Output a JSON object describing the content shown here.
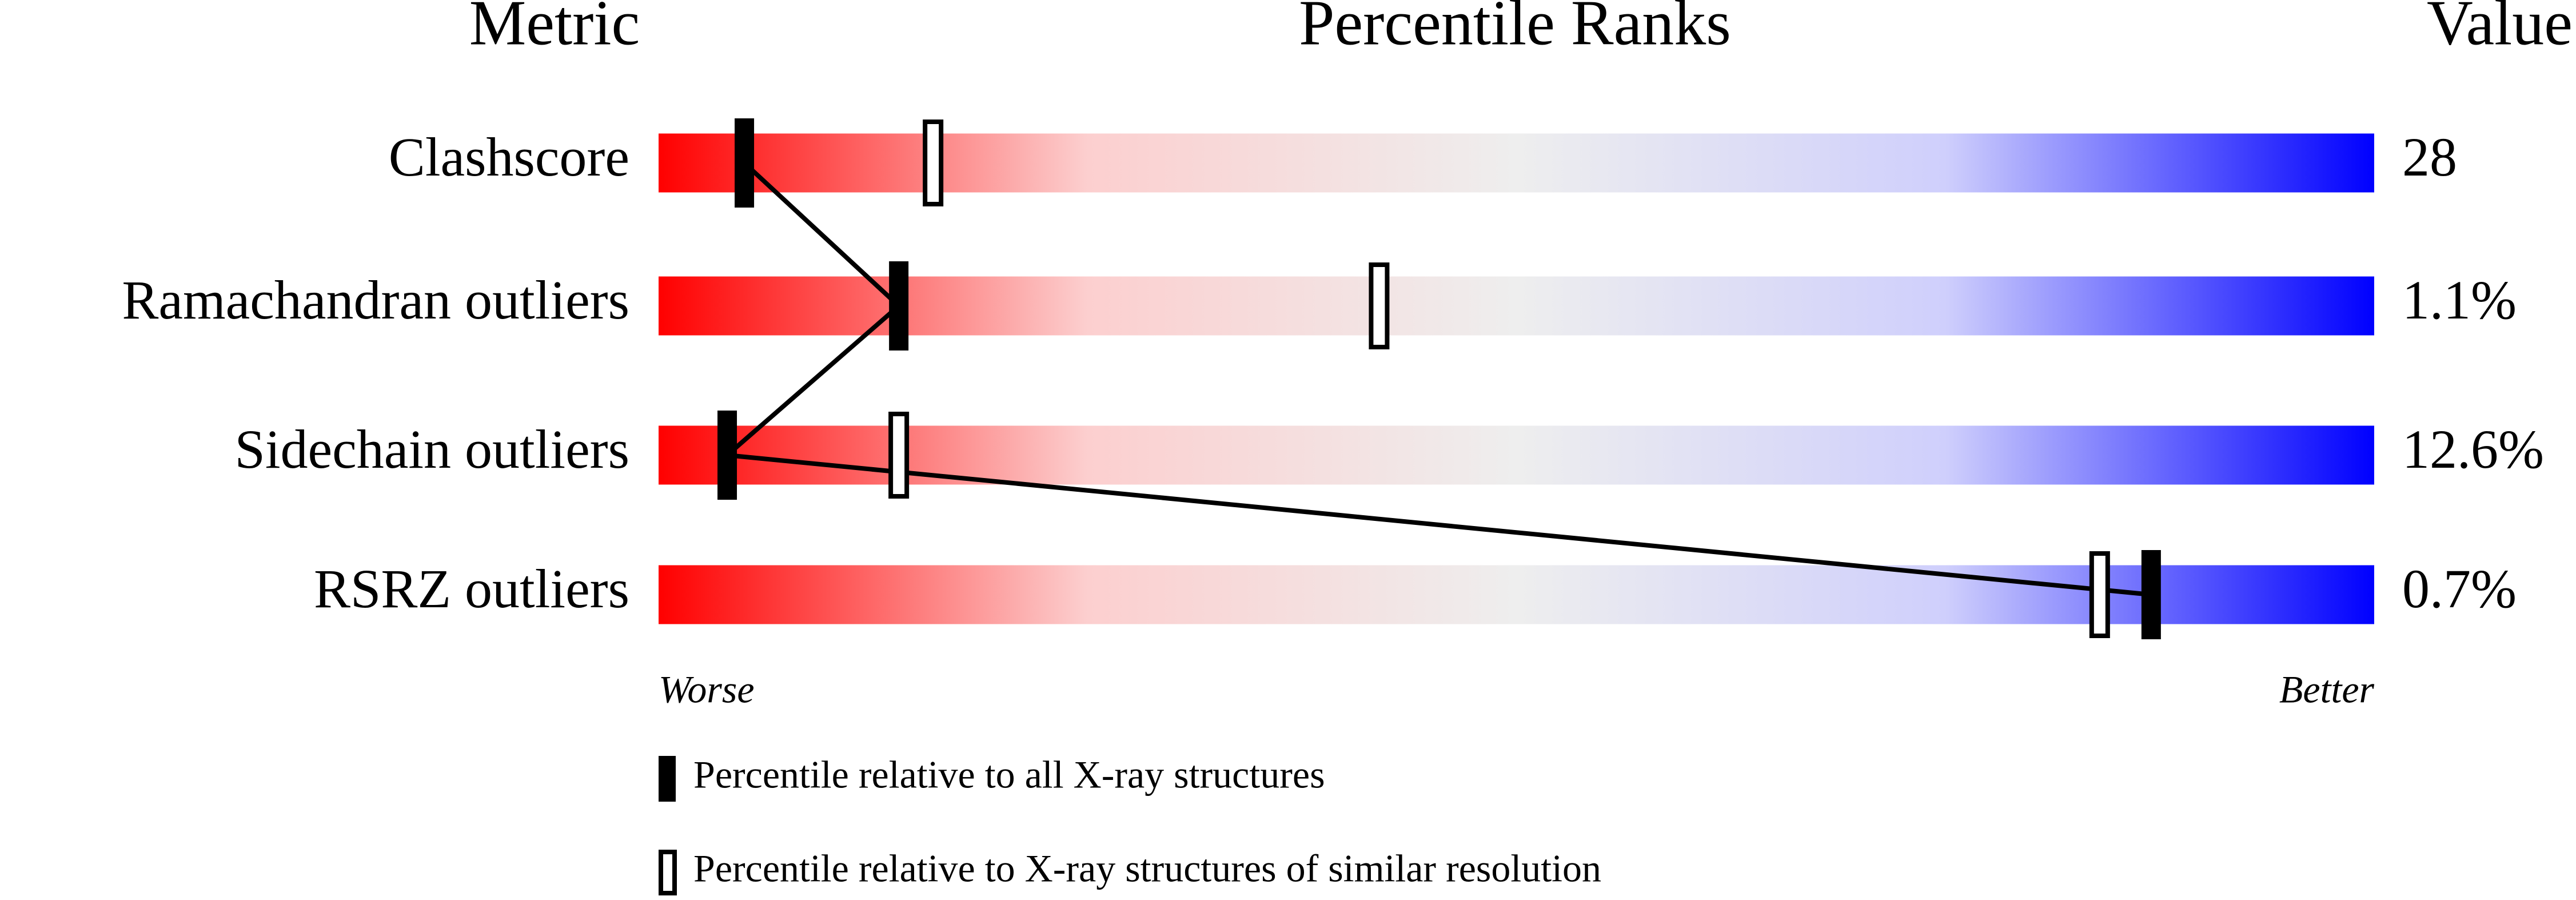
{
  "chart_data": {
    "type": "percentile-slider",
    "headers": {
      "metric": "Metric",
      "percentile": "Percentile Ranks",
      "value": "Value"
    },
    "categories": [
      "Clashscore",
      "Ramachandran outliers",
      "Sidechain outliers",
      "RSRZ outliers"
    ],
    "metric_values": [
      "28",
      "1.1%",
      "12.6%",
      "0.7%"
    ],
    "series": [
      {
        "name": "Percentile relative to all X-ray structures",
        "color": "#000000",
        "values": [
          5,
          14,
          4,
          87
        ]
      },
      {
        "name": "Percentile relative to X-ray structures of similar resolution",
        "color": "#000000",
        "values": [
          16,
          42,
          14,
          84
        ]
      }
    ],
    "xlim": [
      0,
      100
    ],
    "x_end_labels": {
      "low": "Worse",
      "high": "Better"
    },
    "gradient": [
      "#ff0000",
      "#fccfcf",
      "#eeeeee",
      "#cfcffc",
      "#0000ff"
    ]
  }
}
